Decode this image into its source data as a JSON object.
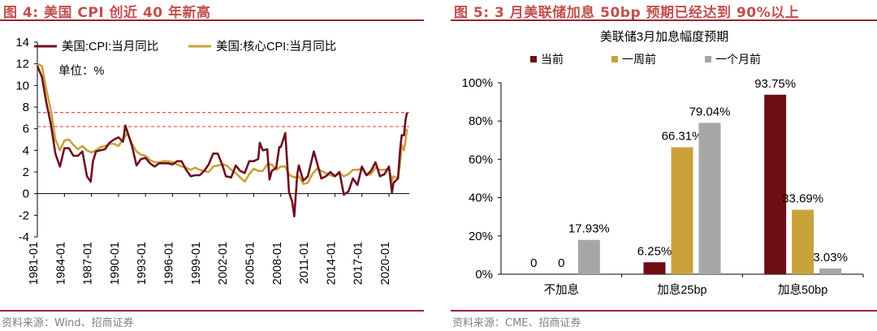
{
  "left_panel": {
    "title": "图 4:  美国 CPI 创近 40 年新高",
    "source": "资料来源：Wind、招商证券"
  },
  "right_panel": {
    "title": "图 5:  3 月美联储加息 50bp 预期已经达到 90%以上",
    "source": "资料来源：CME、招商证券"
  },
  "chart_data": [
    {
      "type": "line",
      "title": "",
      "unit_note": "单位：%",
      "ylim": [
        -4,
        14
      ],
      "yticks": [
        -4,
        -2,
        0,
        2,
        4,
        6,
        8,
        10,
        12,
        14
      ],
      "xticks": [
        "1981-01",
        "1984-01",
        "1987-01",
        "1990-01",
        "1993-01",
        "1996-01",
        "1999-01",
        "2002-01",
        "2005-01",
        "2008-01",
        "2011-01",
        "2014-01",
        "2017-01",
        "2020-01"
      ],
      "grid": false,
      "legend": "top",
      "reference_lines": [
        7.5,
        6.2
      ],
      "series": [
        {
          "name": "美国:CPI:当月同比",
          "color": "#6e1020",
          "points": [
            [
              "1981-01",
              11.8
            ],
            [
              "1981-07",
              10.8
            ],
            [
              "1982-01",
              8.4
            ],
            [
              "1982-07",
              6.4
            ],
            [
              "1983-01",
              3.7
            ],
            [
              "1983-07",
              2.5
            ],
            [
              "1984-01",
              4.2
            ],
            [
              "1984-07",
              4.2
            ],
            [
              "1985-01",
              3.5
            ],
            [
              "1985-07",
              3.5
            ],
            [
              "1986-01",
              3.9
            ],
            [
              "1986-07",
              1.6
            ],
            [
              "1986-12",
              1.1
            ],
            [
              "1987-03",
              3.0
            ],
            [
              "1987-07",
              3.9
            ],
            [
              "1988-01",
              4.0
            ],
            [
              "1988-07",
              4.1
            ],
            [
              "1989-01",
              4.7
            ],
            [
              "1989-07",
              5.0
            ],
            [
              "1990-01",
              5.2
            ],
            [
              "1990-07",
              4.8
            ],
            [
              "1990-10",
              6.3
            ],
            [
              "1991-01",
              5.7
            ],
            [
              "1991-07",
              4.4
            ],
            [
              "1992-01",
              2.6
            ],
            [
              "1992-07",
              3.2
            ],
            [
              "1993-01",
              3.3
            ],
            [
              "1993-07",
              2.8
            ],
            [
              "1994-01",
              2.5
            ],
            [
              "1994-07",
              2.8
            ],
            [
              "1995-01",
              2.8
            ],
            [
              "1995-07",
              2.8
            ],
            [
              "1996-01",
              2.7
            ],
            [
              "1996-07",
              3.0
            ],
            [
              "1997-01",
              3.0
            ],
            [
              "1997-07",
              2.2
            ],
            [
              "1998-01",
              1.6
            ],
            [
              "1998-07",
              1.7
            ],
            [
              "1999-01",
              1.7
            ],
            [
              "1999-07",
              2.1
            ],
            [
              "2000-01",
              2.7
            ],
            [
              "2000-07",
              3.7
            ],
            [
              "2001-01",
              3.7
            ],
            [
              "2001-07",
              2.7
            ],
            [
              "2001-12",
              1.6
            ],
            [
              "2002-07",
              1.5
            ],
            [
              "2003-01",
              2.6
            ],
            [
              "2003-07",
              2.1
            ],
            [
              "2004-01",
              1.9
            ],
            [
              "2004-07",
              3.0
            ],
            [
              "2005-01",
              3.0
            ],
            [
              "2005-07",
              3.2
            ],
            [
              "2005-09",
              4.7
            ],
            [
              "2006-01",
              4.0
            ],
            [
              "2006-07",
              4.1
            ],
            [
              "2006-10",
              1.3
            ],
            [
              "2007-01",
              2.1
            ],
            [
              "2007-07",
              2.4
            ],
            [
              "2007-11",
              4.3
            ],
            [
              "2008-01",
              4.3
            ],
            [
              "2008-07",
              5.6
            ],
            [
              "2008-12",
              0.1
            ],
            [
              "2009-04",
              -0.7
            ],
            [
              "2009-07",
              -2.1
            ],
            [
              "2009-11",
              1.8
            ],
            [
              "2010-01",
              2.6
            ],
            [
              "2010-07",
              1.2
            ],
            [
              "2011-01",
              1.6
            ],
            [
              "2011-09",
              3.9
            ],
            [
              "2012-01",
              2.9
            ],
            [
              "2012-07",
              1.4
            ],
            [
              "2013-01",
              1.6
            ],
            [
              "2013-07",
              2.0
            ],
            [
              "2014-01",
              1.6
            ],
            [
              "2014-07",
              2.0
            ],
            [
              "2015-01",
              -0.1
            ],
            [
              "2015-07",
              0.2
            ],
            [
              "2016-01",
              1.4
            ],
            [
              "2016-07",
              0.8
            ],
            [
              "2017-01",
              2.5
            ],
            [
              "2017-07",
              1.7
            ],
            [
              "2018-01",
              2.1
            ],
            [
              "2018-07",
              2.9
            ],
            [
              "2019-01",
              1.6
            ],
            [
              "2019-07",
              1.8
            ],
            [
              "2020-01",
              2.5
            ],
            [
              "2020-05",
              0.1
            ],
            [
              "2020-07",
              1.0
            ],
            [
              "2021-01",
              1.4
            ],
            [
              "2021-04",
              4.2
            ],
            [
              "2021-06",
              5.4
            ],
            [
              "2021-09",
              5.4
            ],
            [
              "2021-11",
              6.8
            ],
            [
              "2022-01",
              7.5
            ]
          ]
        },
        {
          "name": "美国:核心CPI:当月同比",
          "color": "#c9a23a",
          "points": [
            [
              "1981-01",
              12.0
            ],
            [
              "1981-07",
              11.8
            ],
            [
              "1982-01",
              9.6
            ],
            [
              "1982-07",
              7.7
            ],
            [
              "1983-01",
              5.0
            ],
            [
              "1983-07",
              4.0
            ],
            [
              "1984-01",
              4.9
            ],
            [
              "1984-07",
              5.0
            ],
            [
              "1985-01",
              4.5
            ],
            [
              "1985-07",
              4.1
            ],
            [
              "1986-01",
              4.4
            ],
            [
              "1986-07",
              4.0
            ],
            [
              "1987-01",
              3.8
            ],
            [
              "1987-07",
              4.0
            ],
            [
              "1988-01",
              4.3
            ],
            [
              "1988-07",
              4.4
            ],
            [
              "1989-01",
              4.6
            ],
            [
              "1989-07",
              4.6
            ],
            [
              "1990-01",
              4.4
            ],
            [
              "1990-07",
              5.0
            ],
            [
              "1991-01",
              5.6
            ],
            [
              "1991-07",
              4.6
            ],
            [
              "1992-01",
              3.9
            ],
            [
              "1992-07",
              3.6
            ],
            [
              "1993-01",
              3.5
            ],
            [
              "1993-07",
              3.1
            ],
            [
              "1994-01",
              2.9
            ],
            [
              "1994-07",
              2.9
            ],
            [
              "1995-01",
              3.0
            ],
            [
              "1995-07",
              3.0
            ],
            [
              "1996-01",
              2.9
            ],
            [
              "1996-07",
              2.7
            ],
            [
              "1997-01",
              2.5
            ],
            [
              "1997-07",
              2.4
            ],
            [
              "1998-01",
              2.2
            ],
            [
              "1998-07",
              2.4
            ],
            [
              "1999-01",
              2.2
            ],
            [
              "1999-07",
              2.1
            ],
            [
              "2000-01",
              2.0
            ],
            [
              "2000-07",
              2.5
            ],
            [
              "2001-01",
              2.6
            ],
            [
              "2001-07",
              2.7
            ],
            [
              "2002-01",
              2.6
            ],
            [
              "2002-07",
              2.2
            ],
            [
              "2003-01",
              1.9
            ],
            [
              "2003-07",
              1.5
            ],
            [
              "2004-01",
              1.1
            ],
            [
              "2004-07",
              1.8
            ],
            [
              "2005-01",
              2.3
            ],
            [
              "2005-07",
              2.1
            ],
            [
              "2006-01",
              2.1
            ],
            [
              "2006-07",
              2.7
            ],
            [
              "2007-01",
              2.7
            ],
            [
              "2007-07",
              2.2
            ],
            [
              "2008-01",
              2.5
            ],
            [
              "2008-07",
              2.5
            ],
            [
              "2009-01",
              1.7
            ],
            [
              "2009-07",
              1.5
            ],
            [
              "2010-01",
              1.6
            ],
            [
              "2010-07",
              0.9
            ],
            [
              "2011-01",
              1.0
            ],
            [
              "2011-07",
              1.8
            ],
            [
              "2012-01",
              2.3
            ],
            [
              "2012-07",
              2.1
            ],
            [
              "2013-01",
              1.9
            ],
            [
              "2013-07",
              1.7
            ],
            [
              "2014-01",
              1.6
            ],
            [
              "2014-07",
              1.9
            ],
            [
              "2015-01",
              1.6
            ],
            [
              "2015-07",
              1.8
            ],
            [
              "2016-01",
              2.2
            ],
            [
              "2016-07",
              2.2
            ],
            [
              "2017-01",
              2.3
            ],
            [
              "2017-07",
              1.7
            ],
            [
              "2018-01",
              1.8
            ],
            [
              "2018-07",
              2.4
            ],
            [
              "2019-01",
              2.2
            ],
            [
              "2019-07",
              2.2
            ],
            [
              "2020-01",
              2.3
            ],
            [
              "2020-05",
              1.2
            ],
            [
              "2020-07",
              1.6
            ],
            [
              "2021-01",
              1.4
            ],
            [
              "2021-04",
              3.0
            ],
            [
              "2021-06",
              4.5
            ],
            [
              "2021-09",
              4.0
            ],
            [
              "2021-11",
              4.9
            ],
            [
              "2022-01",
              6.0
            ]
          ]
        }
      ]
    },
    {
      "type": "bar",
      "title": "美联储3月加息幅度预期",
      "categories": [
        "不加息",
        "加息25bp",
        "加息50bp"
      ],
      "ylim": [
        0,
        100
      ],
      "yticks": [
        0,
        20,
        40,
        60,
        80,
        100
      ],
      "tick_format": "{v}%",
      "legend": "top",
      "series": [
        {
          "name": "当前",
          "color": "#6e0e14",
          "values": [
            0,
            6.25,
            93.75
          ],
          "labels": [
            "0",
            "6.25%",
            "93.75%"
          ]
        },
        {
          "name": "一周前",
          "color": "#c9a23a",
          "values": [
            0,
            66.31,
            33.69
          ],
          "labels": [
            "0",
            "66.31%",
            "33.69%"
          ]
        },
        {
          "name": "一个月前",
          "color": "#a6a6a6",
          "values": [
            17.93,
            79.04,
            3.03
          ],
          "labels": [
            "17.93%",
            "79.04%",
            "3.03%"
          ]
        }
      ]
    }
  ]
}
